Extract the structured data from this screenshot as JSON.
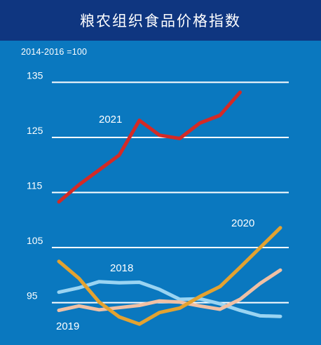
{
  "chart_data": {
    "type": "line",
    "title": "粮农组织食品价格指数",
    "subtitle": "2014-2016 =100",
    "xlabel": "",
    "ylabel": "",
    "ylim": [
      91,
      139
    ],
    "yticks": [
      95,
      105,
      115,
      125,
      135
    ],
    "months": 12,
    "grid": true,
    "legend": "inline labels",
    "series": [
      {
        "name": "2021",
        "color": "#d42a26",
        "label_color": "#ffffff",
        "values": [
          113.3,
          116.4,
          119.1,
          121.8,
          128.1,
          125.4,
          124.8,
          127.6,
          129.0,
          133.2
        ]
      },
      {
        "name": "2020",
        "color": "#e3a230",
        "label_color": "#ffffff",
        "values": [
          102.5,
          99.4,
          95.1,
          92.4,
          91.1,
          93.2,
          94.0,
          96.1,
          97.9,
          101.4,
          105.0,
          108.6
        ]
      },
      {
        "name": "2018",
        "color": "#9ad4f2",
        "label_color": "#ffffff",
        "values": [
          96.9,
          97.7,
          98.8,
          98.6,
          98.7,
          97.4,
          95.6,
          95.7,
          94.8,
          93.6,
          92.6,
          92.5
        ]
      },
      {
        "name": "2019",
        "color": "#f0c0a4",
        "label_color": "#ffffff",
        "values": [
          93.6,
          94.4,
          93.7,
          94.1,
          94.5,
          95.3,
          95.1,
          94.4,
          93.8,
          95.6,
          98.5,
          100.9
        ]
      }
    ]
  }
}
